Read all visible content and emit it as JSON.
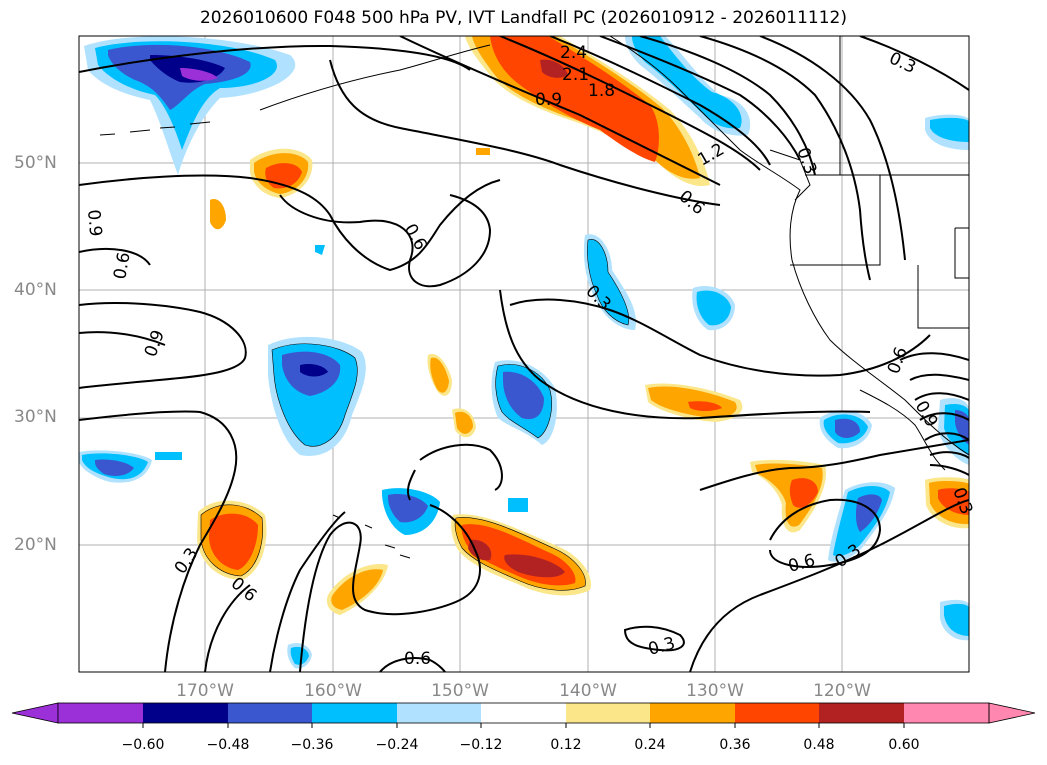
{
  "title": "2026010600 F048 500 hPa PV, IVT Landfall PC (2026010912 - 2026011112)",
  "lat_labels": [
    "50°N",
    "40°N",
    "30°N",
    "20°N"
  ],
  "lon_labels": [
    "170°W",
    "160°W",
    "150°W",
    "140°W",
    "130°W",
    "120°W"
  ],
  "contour_labels": [
    "2.4",
    "2.1",
    "1.8",
    "0.9",
    "1.2",
    "0.6",
    "0.3",
    "0.6",
    "0.9",
    "0.6",
    "0.9",
    "0.3",
    "0.6",
    "0.3",
    "0.6",
    "0.3",
    "0.6",
    "0.3",
    "0.3",
    "0.6",
    "0.9",
    "0.3"
  ],
  "colorbar": {
    "ticks": [
      "−0.60",
      "−0.48",
      "−0.36",
      "−0.24",
      "−0.12",
      "0.12",
      "0.24",
      "0.36",
      "0.48",
      "0.60"
    ],
    "colors": [
      "#9b30d8",
      "#00008b",
      "#3a57d0",
      "#00bfff",
      "#b0e2ff",
      "#ffffff",
      "#fbe68a",
      "#ffa500",
      "#ff4500",
      "#b22222",
      "#ff87b0"
    ]
  }
}
